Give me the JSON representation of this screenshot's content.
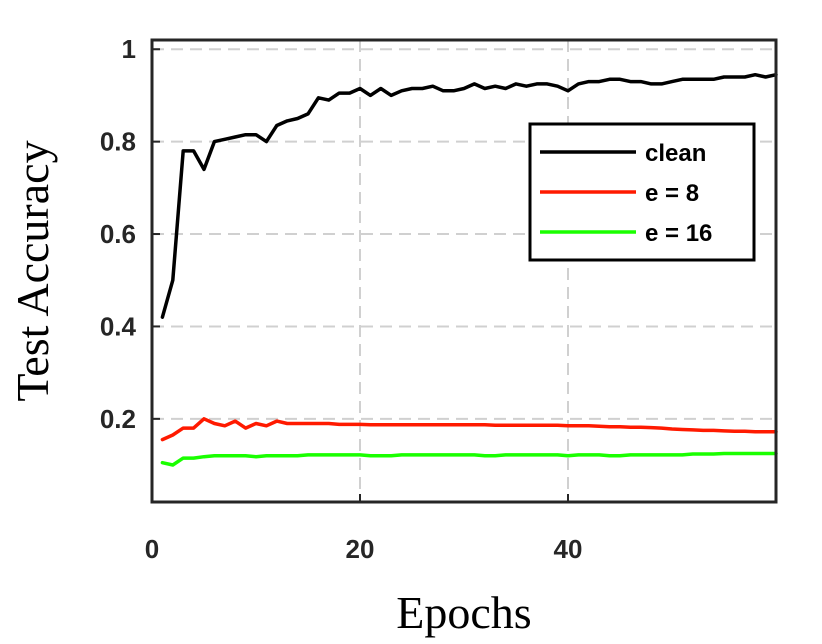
{
  "chart_data": {
    "type": "line",
    "title": "",
    "xlabel": "Epochs",
    "ylabel": "Test Accuracy",
    "xlim": [
      0,
      60
    ],
    "ylim": [
      0.02,
      1.02
    ],
    "xticks": [
      0,
      20,
      40
    ],
    "xtick_labels": [
      "0",
      "20",
      "40"
    ],
    "yticks": [
      0.2,
      0.4,
      0.6,
      0.8,
      1.0
    ],
    "ytick_labels": [
      "0.2",
      "0.4",
      "0.6",
      "0.8",
      "1"
    ],
    "grid": true,
    "legend_position": "top-right",
    "x": [
      1,
      2,
      3,
      4,
      5,
      6,
      7,
      8,
      9,
      10,
      11,
      12,
      13,
      14,
      15,
      16,
      17,
      18,
      19,
      20,
      21,
      22,
      23,
      24,
      25,
      26,
      27,
      28,
      29,
      30,
      31,
      32,
      33,
      34,
      35,
      36,
      37,
      38,
      39,
      40,
      41,
      42,
      43,
      44,
      45,
      46,
      47,
      48,
      49,
      50,
      51,
      52,
      53,
      54,
      55,
      56,
      57,
      58,
      59,
      60
    ],
    "series": [
      {
        "name": "clean",
        "color": "#000000",
        "values": [
          0.42,
          0.5,
          0.78,
          0.78,
          0.74,
          0.8,
          0.805,
          0.81,
          0.815,
          0.815,
          0.8,
          0.835,
          0.845,
          0.85,
          0.86,
          0.895,
          0.89,
          0.905,
          0.905,
          0.915,
          0.9,
          0.915,
          0.9,
          0.91,
          0.915,
          0.915,
          0.92,
          0.91,
          0.91,
          0.915,
          0.925,
          0.915,
          0.92,
          0.915,
          0.925,
          0.92,
          0.925,
          0.925,
          0.92,
          0.91,
          0.925,
          0.93,
          0.93,
          0.935,
          0.935,
          0.93,
          0.93,
          0.925,
          0.925,
          0.93,
          0.935,
          0.935,
          0.935,
          0.935,
          0.94,
          0.94,
          0.94,
          0.945,
          0.94,
          0.945
        ]
      },
      {
        "name": "e = 8",
        "color": "#ff1a00",
        "values": [
          0.155,
          0.165,
          0.18,
          0.18,
          0.2,
          0.19,
          0.185,
          0.195,
          0.18,
          0.19,
          0.185,
          0.195,
          0.19,
          0.19,
          0.19,
          0.19,
          0.19,
          0.188,
          0.188,
          0.188,
          0.187,
          0.187,
          0.187,
          0.187,
          0.187,
          0.187,
          0.187,
          0.187,
          0.187,
          0.187,
          0.187,
          0.187,
          0.186,
          0.186,
          0.186,
          0.186,
          0.186,
          0.186,
          0.186,
          0.185,
          0.185,
          0.185,
          0.184,
          0.183,
          0.183,
          0.182,
          0.182,
          0.181,
          0.18,
          0.178,
          0.177,
          0.176,
          0.175,
          0.175,
          0.174,
          0.173,
          0.173,
          0.172,
          0.172,
          0.172
        ]
      },
      {
        "name": "e = 16",
        "color": "#1aff00",
        "values": [
          0.105,
          0.1,
          0.115,
          0.115,
          0.118,
          0.12,
          0.12,
          0.12,
          0.12,
          0.118,
          0.12,
          0.12,
          0.12,
          0.12,
          0.122,
          0.122,
          0.122,
          0.122,
          0.122,
          0.122,
          0.12,
          0.12,
          0.12,
          0.122,
          0.122,
          0.122,
          0.122,
          0.122,
          0.122,
          0.122,
          0.122,
          0.12,
          0.12,
          0.122,
          0.122,
          0.122,
          0.122,
          0.122,
          0.122,
          0.12,
          0.122,
          0.122,
          0.122,
          0.12,
          0.12,
          0.122,
          0.122,
          0.122,
          0.122,
          0.122,
          0.122,
          0.124,
          0.124,
          0.124,
          0.125,
          0.125,
          0.125,
          0.125,
          0.125,
          0.125
        ]
      }
    ]
  }
}
